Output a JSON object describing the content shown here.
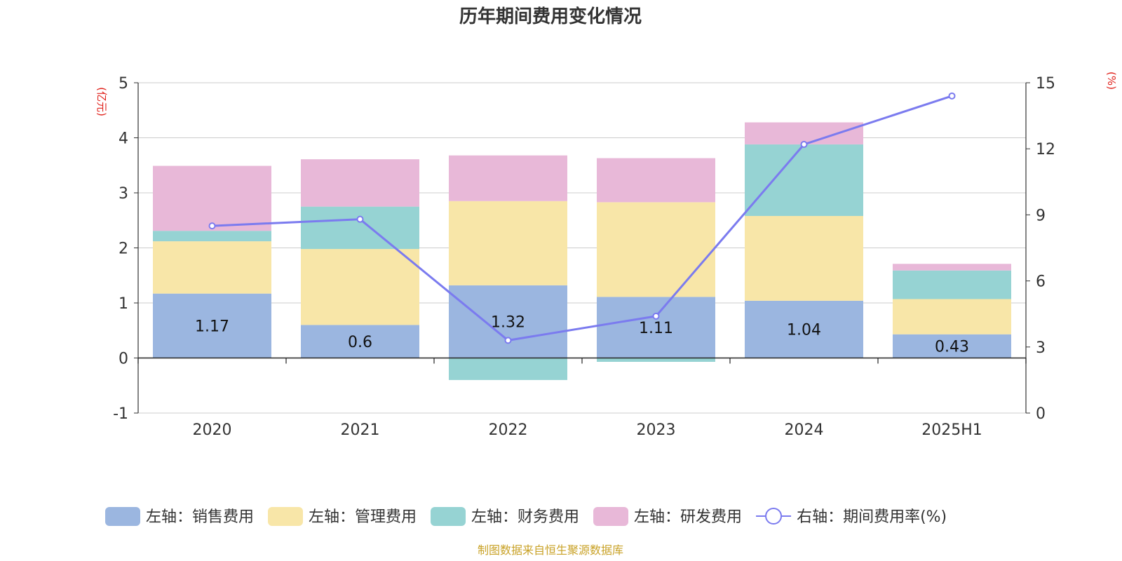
{
  "title": "历年期间费用变化情况",
  "source_note": "制图数据来自恒生聚源数据库",
  "colors": {
    "sales": "#9bb6e0",
    "admin": "#f8e6a8",
    "finance": "#96d3d3",
    "rd": "#e8b8d8",
    "line": "#7b7bef",
    "unit": "#e0201a",
    "grid": "#cccccc"
  },
  "chart_data": {
    "type": "bar",
    "stacked": true,
    "categories": [
      "2020",
      "2021",
      "2022",
      "2023",
      "2024",
      "2025H1"
    ],
    "left_axis": {
      "unit_label": "(亿元)",
      "ylim": [
        -1,
        5
      ],
      "ticks": [
        "-1",
        "0",
        "1",
        "2",
        "3",
        "4",
        "5"
      ]
    },
    "right_axis": {
      "unit_label": "(%)",
      "ylim": [
        0,
        15
      ],
      "ticks": [
        "0",
        "3",
        "6",
        "9",
        "12",
        "15"
      ]
    },
    "grid": true,
    "legend_position": "bottom",
    "series": [
      {
        "name": "左轴：销售费用",
        "axis": "left",
        "color_key": "sales",
        "values": [
          1.17,
          0.6,
          1.32,
          1.11,
          1.04,
          0.43
        ],
        "show_labels": true
      },
      {
        "name": "左轴：管理费用",
        "axis": "left",
        "color_key": "admin",
        "values": [
          0.95,
          1.38,
          1.53,
          1.72,
          1.54,
          0.64
        ]
      },
      {
        "name": "左轴：财务费用",
        "axis": "left",
        "color_key": "finance",
        "values": [
          0.19,
          0.77,
          -0.4,
          -0.07,
          1.3,
          0.52
        ]
      },
      {
        "name": "左轴：研发费用",
        "axis": "left",
        "color_key": "rd",
        "values": [
          1.18,
          0.86,
          0.83,
          0.8,
          0.4,
          0.12
        ]
      },
      {
        "name": "右轴：期间费用率(%)",
        "axis": "right",
        "type": "line",
        "color_key": "line",
        "values": [
          8.5,
          8.8,
          3.3,
          4.4,
          12.2,
          14.4
        ]
      }
    ]
  }
}
